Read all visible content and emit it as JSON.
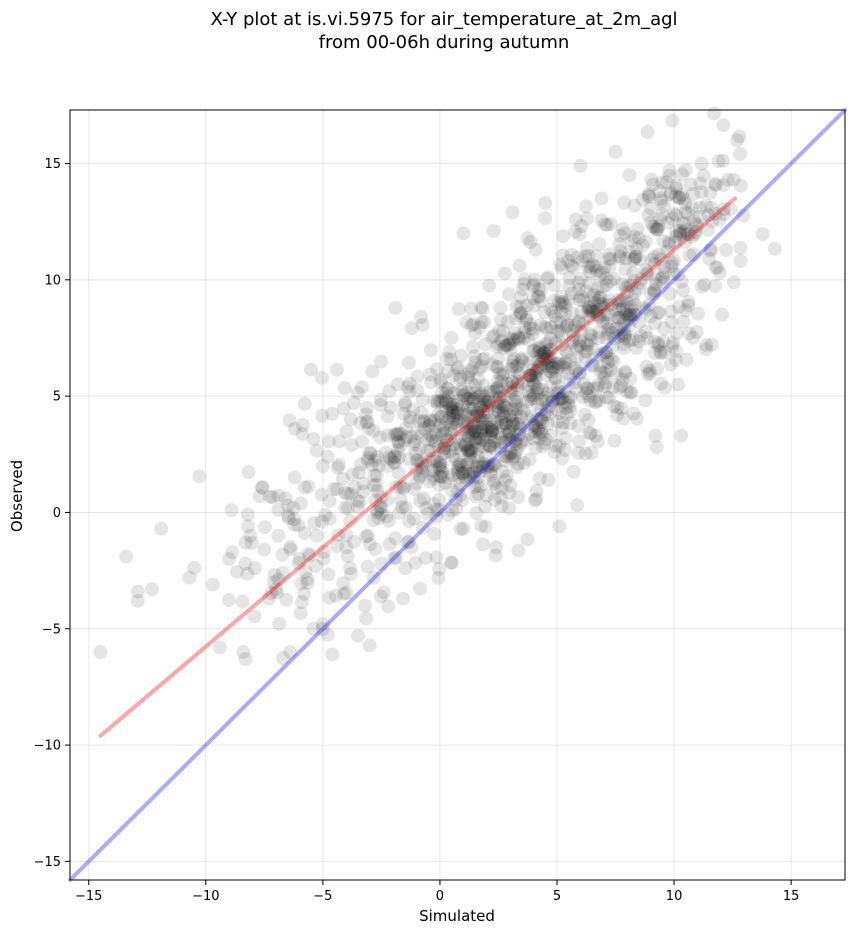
{
  "chart_data": {
    "type": "scatter",
    "title_line1": "X-Y plot at is.vi.5975 for air_temperature_at_2m_agl",
    "title_line2": "from 00-06h during autumn",
    "xlabel": "Simulated",
    "ylabel": "Observed",
    "xlim": [
      -15.8,
      17.3
    ],
    "ylim": [
      -15.8,
      17.3
    ],
    "xticks": [
      -15,
      -10,
      -5,
      0,
      5,
      10,
      15
    ],
    "yticks": [
      -15,
      -10,
      -5,
      0,
      5,
      10,
      15
    ],
    "xtick_labels": [
      "−15",
      "−10",
      "−5",
      "0",
      "5",
      "10",
      "15"
    ],
    "ytick_labels": [
      "−15",
      "−10",
      "−5",
      "0",
      "5",
      "10",
      "15"
    ],
    "grid": true,
    "point_color": "#000000",
    "point_alpha": 0.1,
    "regression_line": {
      "color": "#ff0000",
      "alpha": 0.35,
      "x": [
        -14.5,
        12.6
      ],
      "y": [
        -9.6,
        13.5
      ]
    },
    "identity_line": {
      "color": "#0000ff",
      "alpha": 0.33,
      "x": [
        -15.8,
        17.3
      ],
      "y": [
        -15.8,
        17.3
      ]
    },
    "approx_point_count": 1400,
    "points": [
      [
        -14.5,
        -6.0
      ],
      [
        -13.4,
        -1.9
      ],
      [
        -12.9,
        -3.4
      ],
      [
        -12.9,
        -3.8
      ],
      [
        -12.3,
        -3.3
      ],
      [
        -11.9,
        -0.7
      ],
      [
        -10.7,
        -2.8
      ],
      [
        -9.7,
        -3.1
      ],
      [
        -9.4,
        -5.8
      ],
      [
        -9.0,
        -2.0
      ],
      [
        -8.9,
        0.1
      ],
      [
        -8.4,
        -6.0
      ],
      [
        -8.3,
        -6.3
      ],
      [
        -8.3,
        -1.3
      ],
      [
        -8.1,
        -1.0
      ],
      [
        -7.9,
        -2.4
      ],
      [
        -7.7,
        0.7
      ],
      [
        -7.6,
        1.1
      ],
      [
        -7.5,
        -1.6
      ],
      [
        -7.3,
        -3.7
      ],
      [
        -7.1,
        -3.0
      ],
      [
        -7.0,
        -3.3
      ],
      [
        -6.9,
        -1.0
      ],
      [
        -6.5,
        0.3
      ],
      [
        -6.4,
        -6.0
      ],
      [
        -6.2,
        3.6
      ],
      [
        -6.2,
        1.5
      ],
      [
        -6.0,
        -2.0
      ],
      [
        -5.8,
        -3.5
      ],
      [
        -5.4,
        -5.0
      ],
      [
        -5.3,
        -2.3
      ],
      [
        -5.0,
        -4.8
      ],
      [
        -4.8,
        2.4
      ],
      [
        -4.6,
        -6.1
      ],
      [
        -4.4,
        1.0
      ],
      [
        -4.0,
        -1.5
      ],
      [
        -3.8,
        4.0
      ],
      [
        -3.5,
        -5.3
      ],
      [
        -3.2,
        -4.0
      ],
      [
        -2.8,
        1.6
      ],
      [
        -2.5,
        -2.2
      ],
      [
        -2.1,
        2.3
      ],
      [
        -1.9,
        8.8
      ],
      [
        -1.3,
        5.2
      ],
      [
        -0.8,
        8.4
      ],
      [
        -0.4,
        3.9
      ],
      [
        -0.1,
        4.7
      ],
      [
        0.4,
        6.9
      ],
      [
        1.0,
        12.0
      ],
      [
        1.5,
        7.7
      ],
      [
        2.3,
        12.1
      ],
      [
        2.4,
        -1.5
      ],
      [
        2.9,
        8.2
      ],
      [
        3.1,
        12.9
      ],
      [
        3.4,
        10.6
      ],
      [
        4.0,
        9.2
      ],
      [
        4.5,
        13.3
      ],
      [
        4.7,
        6.5
      ],
      [
        5.2,
        10.5
      ],
      [
        5.8,
        12.6
      ],
      [
        6.0,
        14.9
      ],
      [
        6.2,
        11.0
      ],
      [
        6.5,
        8.6
      ],
      [
        6.9,
        13.5
      ],
      [
        7.3,
        12.4
      ],
      [
        7.5,
        15.5
      ],
      [
        7.9,
        12.0
      ],
      [
        8.1,
        14.5
      ],
      [
        8.5,
        11.8
      ],
      [
        8.9,
        13.6
      ],
      [
        9.2,
        3.3
      ],
      [
        9.5,
        12.8
      ],
      [
        9.8,
        14.7
      ],
      [
        10.1,
        12.1
      ],
      [
        10.3,
        3.3
      ],
      [
        10.4,
        8.2
      ],
      [
        10.7,
        14.1
      ],
      [
        11.1,
        12.7
      ],
      [
        11.3,
        9.8
      ],
      [
        11.6,
        13.1
      ],
      [
        11.9,
        15.1
      ],
      [
        12.3,
        14.3
      ],
      [
        12.7,
        16.0
      ],
      [
        7.8,
        5.7
      ]
    ],
    "clusters": [
      {
        "cx": 1.5,
        "cy": 3.5,
        "sx": 1.6,
        "sy": 1.6,
        "n": 380
      },
      {
        "cx": 4.5,
        "cy": 6.0,
        "sx": 2.0,
        "sy": 1.9,
        "n": 360
      },
      {
        "cx": 7.5,
        "cy": 9.0,
        "sx": 1.8,
        "sy": 1.9,
        "n": 260
      },
      {
        "cx": -2.0,
        "cy": 1.2,
        "sx": 2.2,
        "sy": 2.2,
        "n": 200
      },
      {
        "cx": 10.5,
        "cy": 12.5,
        "sx": 1.4,
        "sy": 1.6,
        "n": 110
      },
      {
        "cx": -6.0,
        "cy": -2.0,
        "sx": 2.0,
        "sy": 2.0,
        "n": 60
      }
    ]
  }
}
